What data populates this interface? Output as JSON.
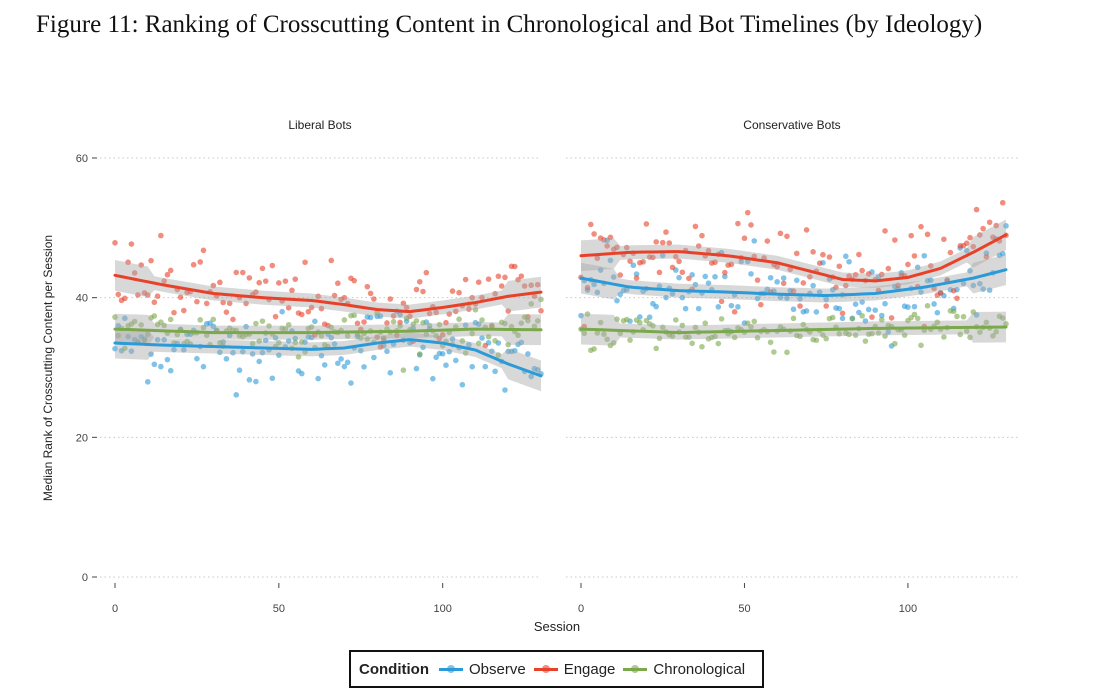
{
  "caption": "Figure 11: Ranking of Crosscutting Content in Chronological and Bot Timelines (by Ideology)",
  "colors": {
    "Observe": "#2b9ad8",
    "Engage": "#e8412a",
    "Chronological": "#7aa84a"
  },
  "legend": {
    "title": "Condition",
    "entries": [
      "Observe",
      "Engage",
      "Chronological"
    ]
  },
  "chart_data": {
    "type": "scatter",
    "xlabel": "Session",
    "ylabel": "Median Rank of Crosscutting Content per Session",
    "ylim": [
      0,
      60
    ],
    "yticks": [
      0,
      20,
      40,
      60
    ],
    "xticks": [
      0,
      50,
      100
    ],
    "grid": "horizontal dotted",
    "legend_position": "bottom",
    "smoothing": "loess curves with grey confidence bands",
    "panels": [
      {
        "title": "Liberal Bots",
        "xlim": [
          0,
          132
        ],
        "series": [
          {
            "name": "Observe",
            "trend_x": [
              0,
              15,
              30,
              45,
              60,
              70,
              80,
              90,
              100,
              110,
              120,
              130
            ],
            "trend_y": [
              33.5,
              33.2,
              33.0,
              32.8,
              32.6,
              32.8,
              33.5,
              34.0,
              33.5,
              32.5,
              30.5,
              28.8
            ],
            "scatter_sd": 2.6
          },
          {
            "name": "Engage",
            "trend_x": [
              0,
              15,
              30,
              45,
              60,
              70,
              80,
              90,
              100,
              110,
              120,
              130
            ],
            "trend_y": [
              43.2,
              41.8,
              40.6,
              40.0,
              39.6,
              39.0,
              38.3,
              38.0,
              38.6,
              39.3,
              40.2,
              40.8
            ],
            "scatter_sd": 2.8
          },
          {
            "name": "Chronological",
            "trend_x": [
              0,
              30,
              60,
              90,
              110,
              130
            ],
            "trend_y": [
              35.5,
              35.0,
              35.0,
              35.2,
              35.5,
              35.4
            ],
            "scatter_sd": 1.6
          }
        ]
      },
      {
        "title": "Conservative Bots",
        "xlim": [
          0,
          132
        ],
        "series": [
          {
            "name": "Observe",
            "trend_x": [
              0,
              15,
              30,
              45,
              60,
              75,
              90,
              105,
              120,
              130
            ],
            "trend_y": [
              42.8,
              41.5,
              41.0,
              40.8,
              40.5,
              40.3,
              40.6,
              41.5,
              42.8,
              44.0
            ],
            "scatter_sd": 2.7
          },
          {
            "name": "Engage",
            "trend_x": [
              0,
              15,
              30,
              45,
              60,
              70,
              80,
              90,
              100,
              110,
              120,
              130
            ],
            "trend_y": [
              46.0,
              46.5,
              46.6,
              46.0,
              45.0,
              43.8,
              42.6,
              42.4,
              42.9,
              44.2,
              46.5,
              49.0
            ],
            "scatter_sd": 3.0
          },
          {
            "name": "Chronological",
            "trend_x": [
              0,
              30,
              60,
              90,
              110,
              130
            ],
            "trend_y": [
              35.5,
              35.0,
              35.3,
              35.6,
              35.7,
              35.8
            ],
            "scatter_sd": 1.5
          }
        ]
      }
    ]
  }
}
